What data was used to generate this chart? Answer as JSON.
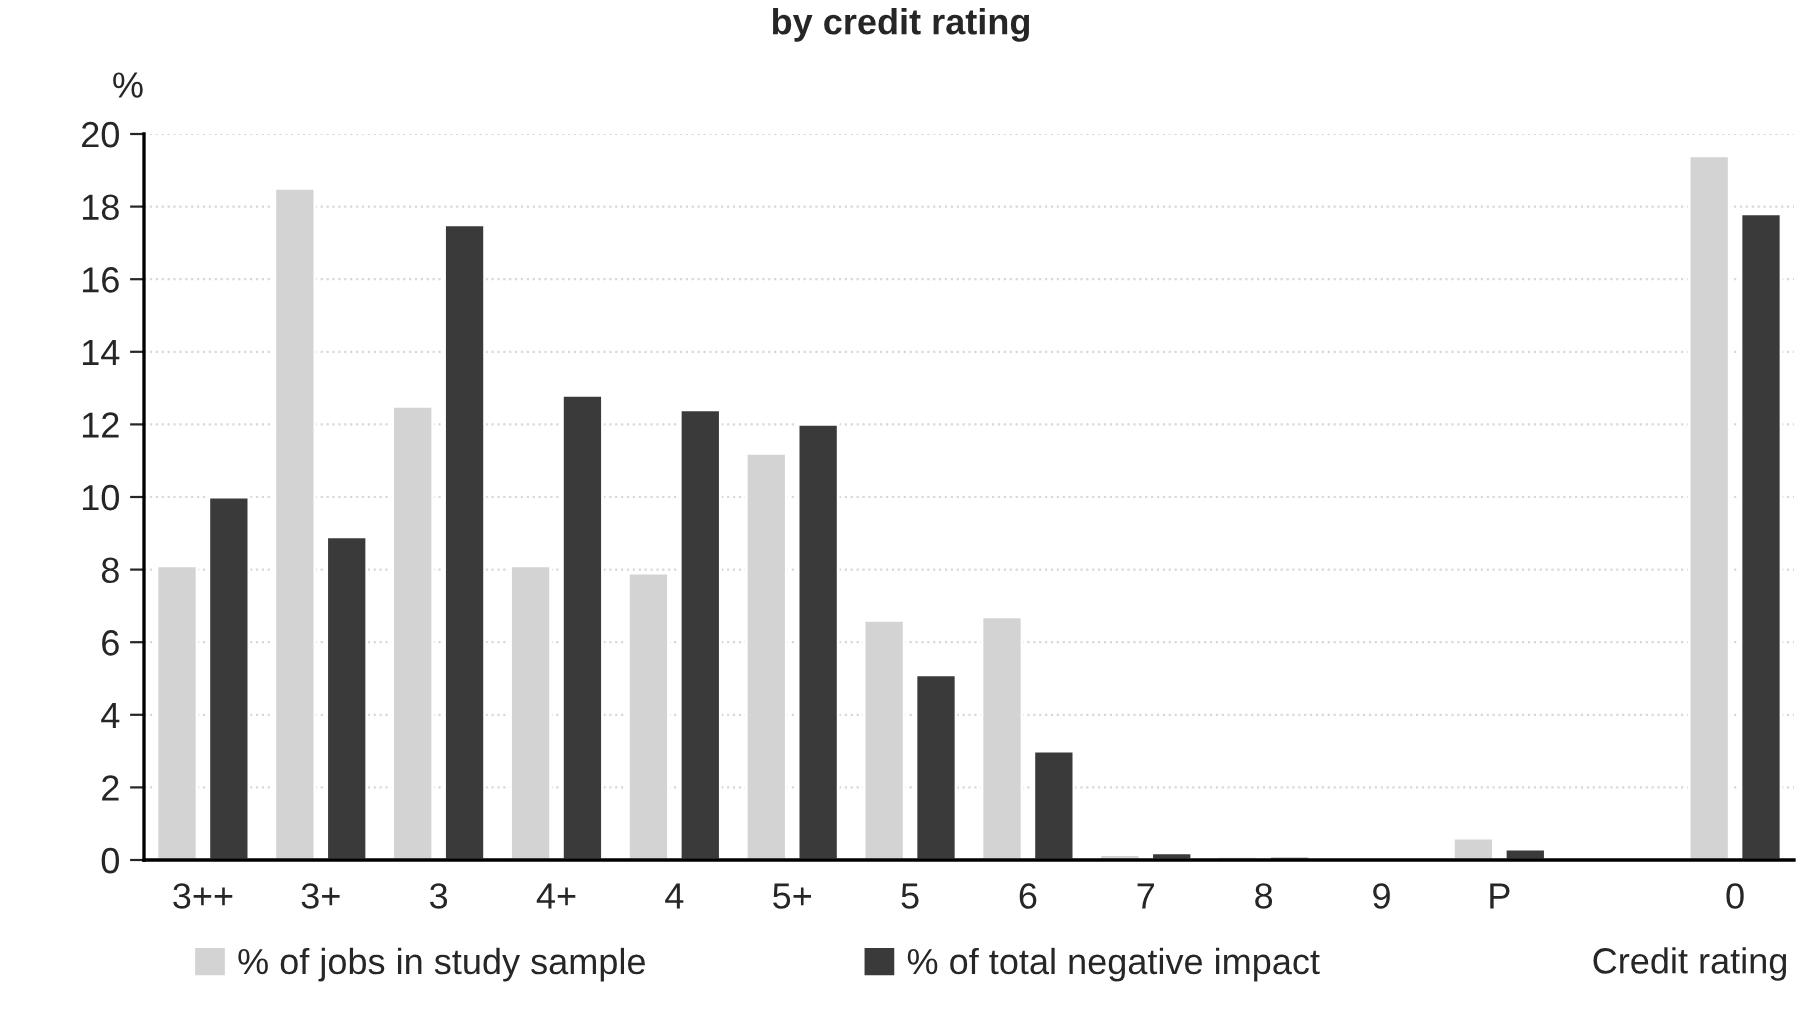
{
  "chart_data": {
    "type": "bar",
    "title": "by credit rating",
    "ylabel": "%",
    "xlabel": "Credit rating",
    "categories": [
      "3++",
      "3+",
      "3",
      "4+",
      "4",
      "5+",
      "5",
      "6",
      "7",
      "8",
      "9",
      "P",
      null,
      "0"
    ],
    "series": [
      {
        "name": "% of jobs in study sample",
        "color": "#d3d3d3",
        "values": [
          8.1,
          18.5,
          12.5,
          8.1,
          7.9,
          11.2,
          6.6,
          6.7,
          0.15,
          0.1,
          null,
          0.6,
          null,
          19.4
        ]
      },
      {
        "name": "% of total negative impact",
        "color": "#3a3a3a",
        "values": [
          10.0,
          8.9,
          17.5,
          12.8,
          12.4,
          12.0,
          5.1,
          3.0,
          0.2,
          0.1,
          null,
          0.3,
          null,
          17.8
        ]
      }
    ],
    "ylim": [
      0,
      20
    ],
    "yticks": [
      0,
      2,
      4,
      6,
      8,
      10,
      12,
      14,
      16,
      18,
      20
    ],
    "grid": "y",
    "legend": "bottom"
  }
}
